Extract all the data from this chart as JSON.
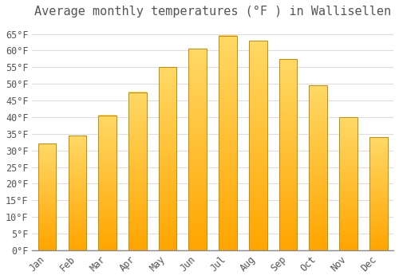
{
  "title": "Average monthly temperatures (°F ) in Wallisellen",
  "months": [
    "Jan",
    "Feb",
    "Mar",
    "Apr",
    "May",
    "Jun",
    "Jul",
    "Aug",
    "Sep",
    "Oct",
    "Nov",
    "Dec"
  ],
  "values": [
    32,
    34.5,
    40.5,
    47.5,
    55,
    60.5,
    64.5,
    63,
    57.5,
    49.5,
    40,
    34
  ],
  "bar_color_top": "#FFD966",
  "bar_color_bottom": "#FFA500",
  "bar_edge_color": "#CC8800",
  "background_color": "#ffffff",
  "grid_color": "#dddddd",
  "text_color": "#555555",
  "ylim": [
    0,
    68
  ],
  "yticks": [
    0,
    5,
    10,
    15,
    20,
    25,
    30,
    35,
    40,
    45,
    50,
    55,
    60,
    65
  ],
  "title_fontsize": 11,
  "tick_fontsize": 8.5,
  "font_family": "monospace",
  "bar_width": 0.6
}
